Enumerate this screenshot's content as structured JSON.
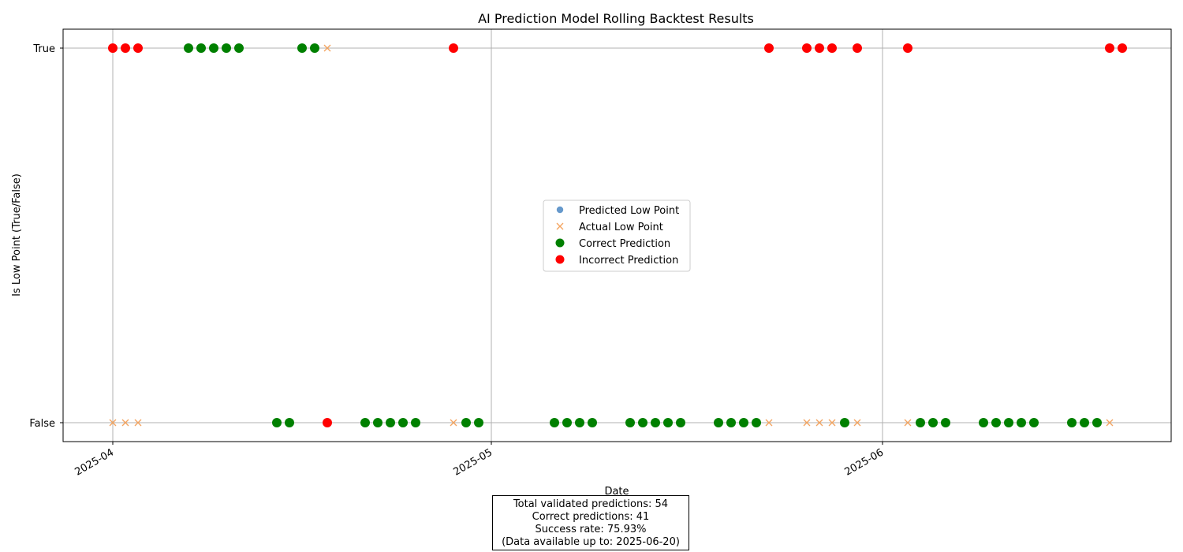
{
  "chart_data": {
    "type": "scatter",
    "title": "AI Prediction Model Rolling Backtest Results",
    "xlabel": "Date",
    "ylabel": "Is Low Point (True/False)",
    "x_type": "date",
    "xlim": [
      "2025-03-25",
      "2025-06-28"
    ],
    "x_ticks": [
      "2025-04",
      "2025-05",
      "2025-06"
    ],
    "x_tick_dates": [
      "2025-04-01",
      "2025-05-01",
      "2025-06-01"
    ],
    "y_categories": [
      "False",
      "True"
    ],
    "grid": true,
    "legend_position": "center",
    "legend": [
      {
        "label": "Predicted Low Point",
        "marker": "circle-small",
        "color": "#6699cc"
      },
      {
        "label": "Actual Low Point",
        "marker": "x",
        "color": "#f4a460"
      },
      {
        "label": "Correct Prediction",
        "marker": "circle",
        "color": "#008000"
      },
      {
        "label": "Incorrect Prediction",
        "marker": "circle",
        "color": "#ff0000"
      }
    ],
    "colors": {
      "correct": "#008000",
      "incorrect": "#ff0000",
      "actual": "#f4a460",
      "predicted": "#6699cc",
      "grid": "#b0b0b0"
    },
    "series": [
      {
        "name": "Correct Prediction",
        "points": [
          {
            "x": "2025-04-07",
            "y": "True"
          },
          {
            "x": "2025-04-08",
            "y": "True"
          },
          {
            "x": "2025-04-09",
            "y": "True"
          },
          {
            "x": "2025-04-10",
            "y": "True"
          },
          {
            "x": "2025-04-11",
            "y": "True"
          },
          {
            "x": "2025-04-16",
            "y": "True"
          },
          {
            "x": "2025-04-17",
            "y": "True"
          },
          {
            "x": "2025-04-14",
            "y": "False"
          },
          {
            "x": "2025-04-15",
            "y": "False"
          },
          {
            "x": "2025-04-21",
            "y": "False"
          },
          {
            "x": "2025-04-22",
            "y": "False"
          },
          {
            "x": "2025-04-23",
            "y": "False"
          },
          {
            "x": "2025-04-24",
            "y": "False"
          },
          {
            "x": "2025-04-25",
            "y": "False"
          },
          {
            "x": "2025-04-29",
            "y": "False"
          },
          {
            "x": "2025-04-30",
            "y": "False"
          },
          {
            "x": "2025-05-06",
            "y": "False"
          },
          {
            "x": "2025-05-07",
            "y": "False"
          },
          {
            "x": "2025-05-08",
            "y": "False"
          },
          {
            "x": "2025-05-09",
            "y": "False"
          },
          {
            "x": "2025-05-12",
            "y": "False"
          },
          {
            "x": "2025-05-13",
            "y": "False"
          },
          {
            "x": "2025-05-14",
            "y": "False"
          },
          {
            "x": "2025-05-15",
            "y": "False"
          },
          {
            "x": "2025-05-16",
            "y": "False"
          },
          {
            "x": "2025-05-19",
            "y": "False"
          },
          {
            "x": "2025-05-20",
            "y": "False"
          },
          {
            "x": "2025-05-21",
            "y": "False"
          },
          {
            "x": "2025-05-22",
            "y": "False"
          },
          {
            "x": "2025-05-29",
            "y": "False"
          },
          {
            "x": "2025-06-04",
            "y": "False"
          },
          {
            "x": "2025-06-05",
            "y": "False"
          },
          {
            "x": "2025-06-06",
            "y": "False"
          },
          {
            "x": "2025-06-09",
            "y": "False"
          },
          {
            "x": "2025-06-10",
            "y": "False"
          },
          {
            "x": "2025-06-11",
            "y": "False"
          },
          {
            "x": "2025-06-12",
            "y": "False"
          },
          {
            "x": "2025-06-13",
            "y": "False"
          },
          {
            "x": "2025-06-16",
            "y": "False"
          },
          {
            "x": "2025-06-17",
            "y": "False"
          },
          {
            "x": "2025-06-18",
            "y": "False"
          }
        ]
      },
      {
        "name": "Incorrect Prediction",
        "points": [
          {
            "x": "2025-04-01",
            "y": "True"
          },
          {
            "x": "2025-04-02",
            "y": "True"
          },
          {
            "x": "2025-04-03",
            "y": "True"
          },
          {
            "x": "2025-04-18",
            "y": "False"
          },
          {
            "x": "2025-04-28",
            "y": "True"
          },
          {
            "x": "2025-05-23",
            "y": "True"
          },
          {
            "x": "2025-05-26",
            "y": "True"
          },
          {
            "x": "2025-05-27",
            "y": "True"
          },
          {
            "x": "2025-05-28",
            "y": "True"
          },
          {
            "x": "2025-05-30",
            "y": "True"
          },
          {
            "x": "2025-06-03",
            "y": "True"
          },
          {
            "x": "2025-06-19",
            "y": "True"
          },
          {
            "x": "2025-06-20",
            "y": "True"
          }
        ]
      },
      {
        "name": "Actual Low Point",
        "points": [
          {
            "x": "2025-04-01",
            "y": "False"
          },
          {
            "x": "2025-04-02",
            "y": "False"
          },
          {
            "x": "2025-04-03",
            "y": "False"
          },
          {
            "x": "2025-04-18",
            "y": "True"
          },
          {
            "x": "2025-04-28",
            "y": "False"
          },
          {
            "x": "2025-05-23",
            "y": "False"
          },
          {
            "x": "2025-05-26",
            "y": "False"
          },
          {
            "x": "2025-05-27",
            "y": "False"
          },
          {
            "x": "2025-05-28",
            "y": "False"
          },
          {
            "x": "2025-05-30",
            "y": "False"
          },
          {
            "x": "2025-06-03",
            "y": "False"
          },
          {
            "x": "2025-06-19",
            "y": "False"
          }
        ]
      }
    ]
  },
  "stats": {
    "total": "Total validated predictions: 54",
    "correct": "Correct predictions: 41",
    "rate": "Success rate: 75.93%",
    "available": "(Data available up to: 2025-06-20)"
  }
}
